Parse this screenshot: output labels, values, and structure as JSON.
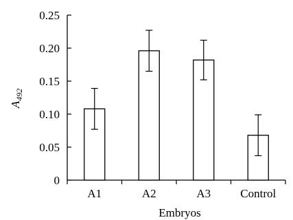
{
  "chart_data": {
    "type": "bar",
    "title": "",
    "xlabel": "Embryos",
    "ylabel": "A492",
    "ylabel_main": "A",
    "ylabel_sub": "492",
    "categories": [
      "A1",
      "A2",
      "A3",
      "Control"
    ],
    "values": [
      0.108,
      0.196,
      0.182,
      0.068
    ],
    "errors": [
      0.031,
      0.031,
      0.03,
      0.031
    ],
    "ylim": [
      0,
      0.25
    ],
    "yticks": [
      "0",
      "0.05",
      "0.10",
      "0.15",
      "0.20",
      "0.25"
    ],
    "ytick_values": [
      0,
      0.05,
      0.1,
      0.15,
      0.2,
      0.25
    ],
    "grid": false,
    "legend": "none"
  }
}
